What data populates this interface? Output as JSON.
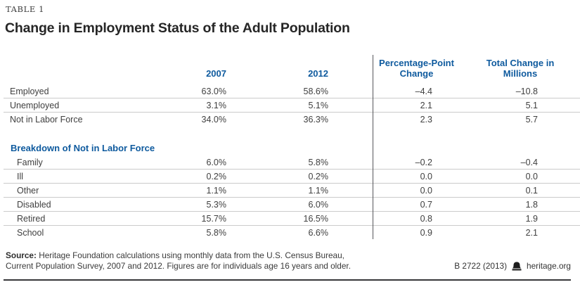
{
  "table_label": "TABLE 1",
  "chart_data": {
    "type": "table",
    "title": "Change in Employment Status of the Adult Population",
    "columns": {
      "category": "",
      "year1": "2007",
      "year2": "2012",
      "pp_change": "Percentage-Point Change",
      "total_change": "Total Change in Millions"
    },
    "rows": [
      {
        "label": "Employed",
        "y2007": "63.0%",
        "y2012": "58.6%",
        "pp_change": "–4.4",
        "total_change": "–10.8"
      },
      {
        "label": "Unemployed",
        "y2007": "3.1%",
        "y2012": "5.1%",
        "pp_change": "2.1",
        "total_change": "5.1"
      },
      {
        "label": "Not in Labor Force",
        "y2007": "34.0%",
        "y2012": "36.3%",
        "pp_change": "2.3",
        "total_change": "5.7"
      }
    ],
    "section_header": "Breakdown of Not in Labor Force",
    "breakdown_rows": [
      {
        "label": "Family",
        "y2007": "6.0%",
        "y2012": "5.8%",
        "pp_change": "–0.2",
        "total_change": "–0.4"
      },
      {
        "label": "Ill",
        "y2007": "0.2%",
        "y2012": "0.2%",
        "pp_change": "0.0",
        "total_change": "0.0"
      },
      {
        "label": "Other",
        "y2007": "1.1%",
        "y2012": "1.1%",
        "pp_change": "0.0",
        "total_change": "0.1"
      },
      {
        "label": "Disabled",
        "y2007": "5.3%",
        "y2012": "6.0%",
        "pp_change": "0.7",
        "total_change": "1.8"
      },
      {
        "label": "Retired",
        "y2007": "15.7%",
        "y2012": "16.5%",
        "pp_change": "0.8",
        "total_change": "1.9"
      },
      {
        "label": "School",
        "y2007": "5.8%",
        "y2012": "6.6%",
        "pp_change": "0.9",
        "total_change": "2.1"
      }
    ]
  },
  "footer": {
    "source_label": "Source:",
    "source_line1": "Heritage Foundation calculations using monthly data from the U.S. Census Bureau,",
    "source_line2": "Current Population Survey, 2007 and 2012. Figures are for individuals age 16 years and older.",
    "publication_id": "B 2722 (2013)",
    "bell_icon": "heritage-bell-icon",
    "website": "heritage.org"
  },
  "colors": {
    "accent_blue": "#0e5a9e",
    "title_text": "#262626",
    "body_text": "#404040",
    "row_line": "#cbcbcb",
    "divider_line": "#55565a",
    "bottom_rule": "#37373a"
  }
}
